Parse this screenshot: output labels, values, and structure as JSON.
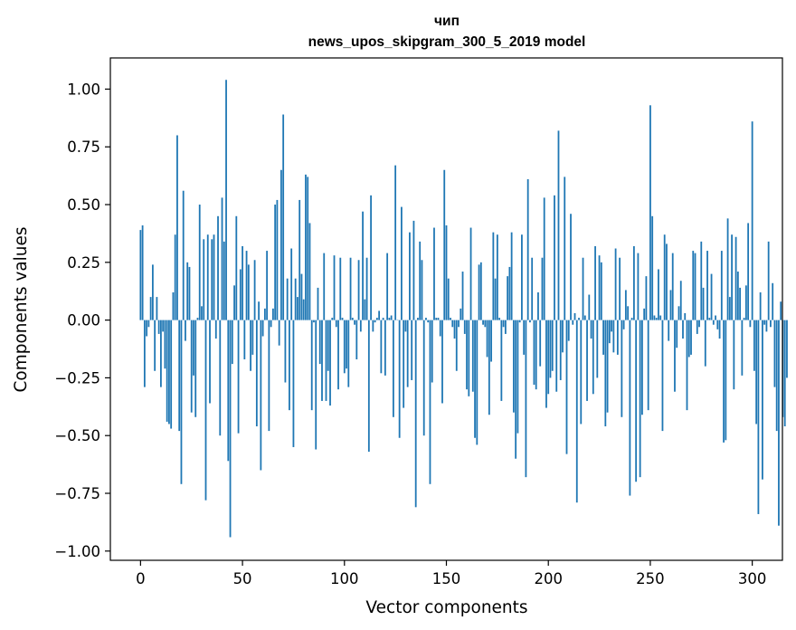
{
  "chart_data": {
    "type": "bar",
    "title_lines": [
      "чип",
      "news_upos_skipgram_300_5_2019 model"
    ],
    "xlabel": "Vector components",
    "ylabel": "Components values",
    "xlim": [
      -14.8,
      314.8
    ],
    "ylim": [
      -1.04,
      1.135
    ],
    "grid": false,
    "legend": "none",
    "x_ticks": [
      0,
      50,
      100,
      150,
      200,
      250,
      300
    ],
    "x_tick_labels": [
      "0",
      "50",
      "100",
      "150",
      "200",
      "250",
      "300"
    ],
    "y_ticks": [
      1.0,
      0.75,
      0.5,
      0.25,
      0.0,
      -0.25,
      -0.5,
      -0.75,
      -1.0
    ],
    "y_tick_labels": [
      "1.00",
      "0.75",
      "0.50",
      "0.25",
      "0.00",
      "−0.25",
      "−0.50",
      "−0.75",
      "−1.00"
    ],
    "bar_color": "#1f77b4",
    "series": [
      {
        "name": "чип",
        "values": [
          0.39,
          0.41,
          -0.29,
          -0.07,
          -0.03,
          0.1,
          0.24,
          -0.22,
          0.1,
          -0.06,
          -0.29,
          -0.05,
          -0.21,
          -0.44,
          -0.45,
          -0.47,
          0.12,
          0.37,
          0.8,
          -0.48,
          -0.71,
          0.56,
          -0.09,
          0.25,
          0.23,
          -0.4,
          -0.24,
          -0.42,
          0.01,
          0.5,
          0.06,
          0.35,
          -0.78,
          0.37,
          -0.36,
          0.35,
          0.37,
          -0.08,
          0.45,
          -0.5,
          0.53,
          0.34,
          1.04,
          -0.61,
          -0.94,
          -0.19,
          0.15,
          0.45,
          -0.49,
          0.22,
          0.32,
          -0.17,
          0.3,
          0.24,
          -0.22,
          -0.15,
          0.26,
          -0.46,
          0.08,
          -0.65,
          -0.07,
          0.05,
          0.3,
          -0.48,
          -0.03,
          0.05,
          0.5,
          0.52,
          -0.11,
          0.65,
          0.89,
          -0.27,
          0.18,
          -0.39,
          0.31,
          -0.55,
          0.18,
          0.1,
          0.52,
          0.2,
          0.09,
          0.63,
          0.62,
          0.42,
          -0.39,
          -0.01,
          -0.56,
          0.14,
          -0.19,
          -0.35,
          0.29,
          -0.35,
          -0.22,
          -0.37,
          0.01,
          0.28,
          -0.03,
          -0.3,
          0.27,
          0.01,
          -0.23,
          -0.21,
          -0.29,
          0.27,
          0.01,
          -0.02,
          -0.17,
          0.26,
          -0.05,
          0.47,
          0.09,
          0.27,
          -0.57,
          0.54,
          -0.05,
          -0.01,
          0.01,
          0.04,
          -0.23,
          0.01,
          -0.24,
          0.29,
          0.01,
          0.02,
          -0.42,
          0.67,
          0.0,
          -0.51,
          0.49,
          -0.38,
          -0.05,
          -0.29,
          0.38,
          -0.26,
          0.43,
          -0.81,
          0.01,
          0.34,
          0.26,
          -0.5,
          0.01,
          -0.01,
          -0.71,
          -0.27,
          0.4,
          0.01,
          0.01,
          -0.07,
          -0.36,
          0.65,
          0.41,
          0.18,
          0.01,
          -0.03,
          -0.08,
          -0.22,
          -0.03,
          0.05,
          0.21,
          -0.06,
          -0.3,
          -0.33,
          0.4,
          -0.31,
          -0.51,
          -0.54,
          0.24,
          0.25,
          -0.02,
          -0.03,
          -0.16,
          -0.41,
          -0.18,
          0.38,
          0.18,
          0.37,
          0.01,
          -0.35,
          -0.03,
          -0.06,
          0.19,
          0.23,
          0.38,
          -0.4,
          -0.6,
          -0.49,
          -0.01,
          0.37,
          -0.15,
          -0.68,
          0.61,
          -0.01,
          0.27,
          -0.28,
          -0.3,
          0.12,
          -0.2,
          0.27,
          0.53,
          -0.38,
          -0.32,
          -0.25,
          -0.22,
          0.54,
          -0.31,
          0.82,
          -0.26,
          -0.14,
          0.62,
          -0.58,
          -0.09,
          0.46,
          -0.02,
          0.03,
          -0.79,
          0.01,
          -0.45,
          0.27,
          0.02,
          -0.35,
          0.11,
          -0.08,
          -0.32,
          0.32,
          -0.25,
          0.28,
          0.25,
          -0.15,
          -0.46,
          -0.4,
          -0.1,
          -0.05,
          -0.14,
          0.31,
          -0.15,
          0.27,
          -0.42,
          -0.04,
          0.13,
          0.06,
          -0.76,
          0.01,
          0.32,
          -0.7,
          0.29,
          -0.68,
          -0.41,
          0.05,
          0.19,
          -0.39,
          0.93,
          0.45,
          0.02,
          0.01,
          0.22,
          0.02,
          -0.48,
          0.37,
          0.33,
          -0.09,
          0.13,
          0.29,
          -0.31,
          -0.12,
          0.06,
          0.17,
          -0.08,
          0.03,
          -0.39,
          -0.16,
          -0.15,
          0.3,
          0.29,
          -0.06,
          -0.03,
          0.34,
          0.14,
          -0.2,
          0.3,
          0.01,
          0.2,
          -0.02,
          0.02,
          -0.04,
          -0.08,
          0.3,
          -0.53,
          -0.52,
          0.44,
          0.1,
          0.37,
          -0.3,
          0.36,
          0.21,
          0.14,
          -0.24,
          0.01,
          0.15,
          0.42,
          -0.03,
          0.86,
          -0.22,
          -0.45,
          -0.84,
          0.12,
          -0.69,
          -0.02,
          -0.05,
          0.34,
          -0.03,
          0.16,
          -0.29,
          -0.48,
          -0.89,
          0.08,
          -0.42,
          -0.46,
          -0.25
        ]
      }
    ]
  }
}
